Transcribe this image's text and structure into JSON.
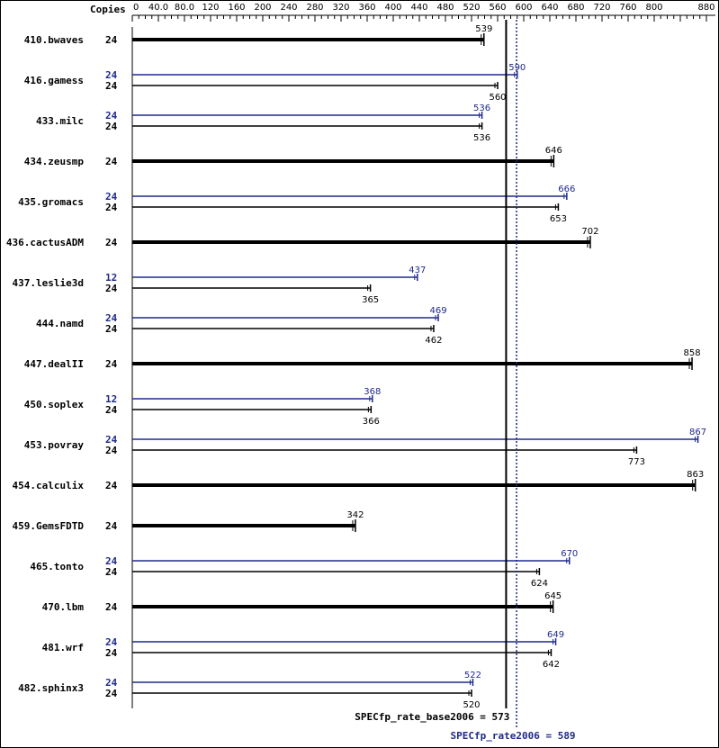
{
  "colors": {
    "base": "#000000",
    "peak": "#1f2a8a",
    "background": "#ffffff"
  },
  "chart_data": {
    "type": "bar",
    "orientation": "horizontal",
    "copies_header": "Copies",
    "x_ticks": [
      "0",
      "40.0",
      "80.0",
      "120",
      "160",
      "200",
      "240",
      "280",
      "320",
      "360",
      "400",
      "440",
      "480",
      "520",
      "560",
      "600",
      "640",
      "680",
      "720",
      "760",
      "800",
      "880"
    ],
    "xlim": [
      0,
      880
    ],
    "benchmarks": [
      {
        "name": "410.bwaves",
        "base_copies": "24",
        "base": 539,
        "base_label": "539"
      },
      {
        "name": "416.gamess",
        "peak_copies": "24",
        "peak": 590,
        "peak_label": "590",
        "base_copies": "24",
        "base": 560,
        "base_label": "560"
      },
      {
        "name": "433.milc",
        "peak_copies": "24",
        "peak": 536,
        "peak_label": "536",
        "base_copies": "24",
        "base": 536,
        "base_label": "536"
      },
      {
        "name": "434.zeusmp",
        "base_copies": "24",
        "base": 646,
        "base_label": "646"
      },
      {
        "name": "435.gromacs",
        "peak_copies": "24",
        "peak": 666,
        "peak_label": "666",
        "base_copies": "24",
        "base": 653,
        "base_label": "653"
      },
      {
        "name": "436.cactusADM",
        "base_copies": "24",
        "base": 702,
        "base_label": "702"
      },
      {
        "name": "437.leslie3d",
        "peak_copies": "12",
        "peak": 437,
        "peak_label": "437",
        "base_copies": "24",
        "base": 365,
        "base_label": "365"
      },
      {
        "name": "444.namd",
        "peak_copies": "24",
        "peak": 469,
        "peak_label": "469",
        "base_copies": "24",
        "base": 462,
        "base_label": "462"
      },
      {
        "name": "447.dealII",
        "base_copies": "24",
        "base": 858,
        "base_label": "858"
      },
      {
        "name": "450.soplex",
        "peak_copies": "12",
        "peak": 368,
        "peak_label": "368",
        "base_copies": "24",
        "base": 366,
        "base_label": "366"
      },
      {
        "name": "453.povray",
        "peak_copies": "24",
        "peak": 867,
        "peak_label": "867",
        "base_copies": "24",
        "base": 773,
        "base_label": "773"
      },
      {
        "name": "454.calculix",
        "base_copies": "24",
        "base": 863,
        "base_label": "863"
      },
      {
        "name": "459.GemsFDTD",
        "base_copies": "24",
        "base": 342,
        "base_label": "342"
      },
      {
        "name": "465.tonto",
        "peak_copies": "24",
        "peak": 670,
        "peak_label": "670",
        "base_copies": "24",
        "base": 624,
        "base_label": "624"
      },
      {
        "name": "470.lbm",
        "base_copies": "24",
        "base": 645,
        "base_label": "645"
      },
      {
        "name": "481.wrf",
        "peak_copies": "24",
        "peak": 649,
        "peak_label": "649",
        "base_copies": "24",
        "base": 642,
        "base_label": "642"
      },
      {
        "name": "482.sphinx3",
        "peak_copies": "24",
        "peak": 522,
        "peak_label": "522",
        "base_copies": "24",
        "base": 520,
        "base_label": "520"
      }
    ],
    "reference_lines": [
      {
        "kind": "base",
        "value": 573,
        "label": "SPECfp_rate_base2006 = 573"
      },
      {
        "kind": "peak",
        "value": 589,
        "label": "SPECfp_rate2006 = 589"
      }
    ]
  }
}
